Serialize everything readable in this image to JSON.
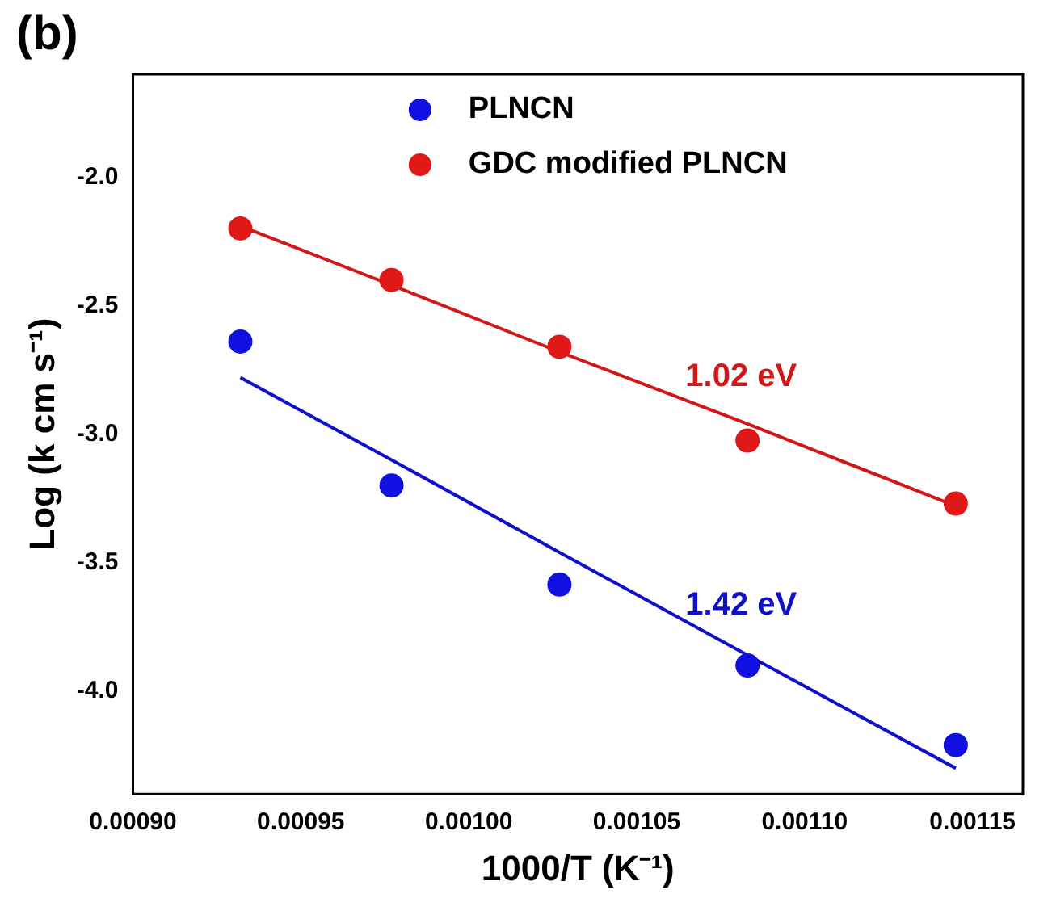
{
  "chart_data": {
    "type": "scatter",
    "title": "(b)",
    "xlabel": "1000/T (K⁻¹)",
    "ylabel": "Log (k cm s⁻¹)",
    "xlim": [
      0.0009,
      0.001165
    ],
    "ylim": [
      -4.4,
      -1.6
    ],
    "xticks": [
      {
        "value": 0.0009,
        "label": "0.00090"
      },
      {
        "value": 0.00095,
        "label": "0.00095"
      },
      {
        "value": 0.001,
        "label": "0.00100"
      },
      {
        "value": 0.00105,
        "label": "0.00105"
      },
      {
        "value": 0.0011,
        "label": "0.00110"
      },
      {
        "value": 0.00115,
        "label": "0.00115"
      }
    ],
    "yticks": [
      {
        "value": -2,
        "label": "-2.0"
      },
      {
        "value": -2.5,
        "label": "-2.5"
      },
      {
        "value": -3,
        "label": "-3.0"
      },
      {
        "value": -3.5,
        "label": "-3.5"
      },
      {
        "value": -4,
        "label": "-4.0"
      }
    ],
    "x": [
      0.000932,
      0.000977,
      0.001027,
      0.001083,
      0.001145
    ],
    "series": [
      {
        "name": "PLNCN",
        "color": "#1010e0",
        "values": [
          -2.64,
          -3.2,
          -3.585,
          -3.9,
          -4.21
        ]
      },
      {
        "name": "GDC modified PLNCN",
        "color": "#e01818",
        "values": [
          -2.2,
          -2.4,
          -2.66,
          -3.025,
          -3.27
        ]
      },
      {
        "name": "1.42 eV",
        "type": "line",
        "color": "#1010c8",
        "values": [
          -2.78,
          -3.1,
          -3.46,
          -3.86,
          -4.3
        ],
        "marker": "none"
      },
      {
        "name": "1.02 eV",
        "type": "line",
        "color": "#d01818",
        "values": [
          -2.19,
          -2.42,
          -2.68,
          -2.96,
          -3.28
        ],
        "marker": "none"
      }
    ],
    "marker": "circle",
    "legend": "top",
    "grid": false
  }
}
